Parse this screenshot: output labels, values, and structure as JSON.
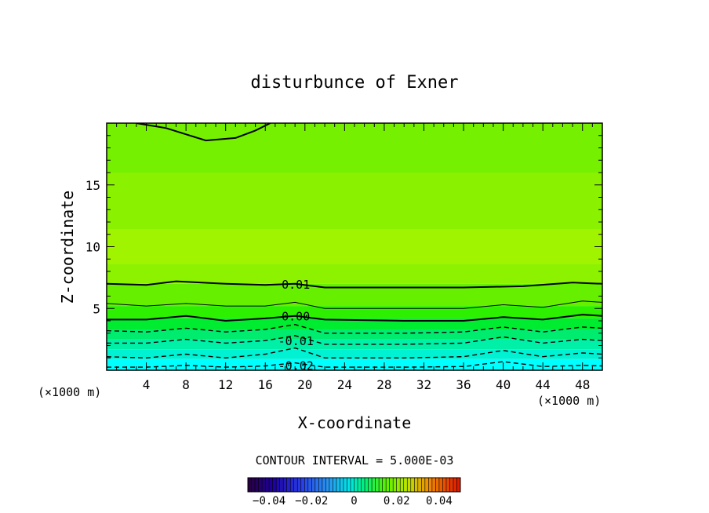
{
  "chart_data": {
    "type": "contour",
    "title": "disturbunce of Exner",
    "xlabel": "X-coordinate",
    "ylabel": "Z-coordinate",
    "x_unit": "(×1000 m)",
    "y_unit": "(×1000 m)",
    "xlim": [
      0,
      50
    ],
    "ylim": [
      0,
      20
    ],
    "x_ticks": [
      4,
      8,
      12,
      16,
      20,
      24,
      28,
      32,
      36,
      40,
      44,
      48
    ],
    "y_ticks": [
      5,
      10,
      15
    ],
    "contour_interval_text": "CONTOUR INTERVAL = 5.000E-03",
    "contour_levels": [
      -0.025,
      -0.02,
      -0.015,
      -0.01,
      -0.005,
      0.0,
      0.005,
      0.01,
      0.015
    ],
    "contour_labels": [
      {
        "text": "0.01",
        "x": 17.5,
        "y": 7.0
      },
      {
        "text": "0.00",
        "x": 17.5,
        "y": 4.4
      },
      {
        "text": "-0.01",
        "x": 17.5,
        "y": 2.4
      },
      {
        "text": "-0.02",
        "x": 17.5,
        "y": 0.4
      }
    ],
    "contour_lines": [
      {
        "level": 0.015,
        "style": "solid",
        "points": [
          [
            3,
            20
          ],
          [
            6,
            19.6
          ],
          [
            10,
            18.6
          ],
          [
            13,
            18.8
          ],
          [
            15,
            19.4
          ],
          [
            16.5,
            20
          ]
        ]
      },
      {
        "level": 0.01,
        "style": "solid",
        "points": [
          [
            0,
            7.0
          ],
          [
            4,
            6.9
          ],
          [
            7,
            7.2
          ],
          [
            12,
            7.0
          ],
          [
            16,
            6.9
          ],
          [
            19,
            7.0
          ],
          [
            22,
            6.7
          ],
          [
            28,
            6.7
          ],
          [
            36,
            6.7
          ],
          [
            42,
            6.8
          ],
          [
            47,
            7.1
          ],
          [
            50,
            7.0
          ]
        ]
      },
      {
        "level": 0.005,
        "style": "thin",
        "points": [
          [
            0,
            5.4
          ],
          [
            4,
            5.2
          ],
          [
            8,
            5.4
          ],
          [
            12,
            5.2
          ],
          [
            16,
            5.2
          ],
          [
            19,
            5.5
          ],
          [
            22,
            5.0
          ],
          [
            30,
            5.0
          ],
          [
            36,
            5.0
          ],
          [
            40,
            5.3
          ],
          [
            44,
            5.1
          ],
          [
            48,
            5.6
          ],
          [
            50,
            5.5
          ]
        ]
      },
      {
        "level": 0.0,
        "style": "solid",
        "points": [
          [
            0,
            4.1
          ],
          [
            4,
            4.1
          ],
          [
            8,
            4.4
          ],
          [
            12,
            4.0
          ],
          [
            16,
            4.2
          ],
          [
            19,
            4.4
          ],
          [
            22,
            4.1
          ],
          [
            30,
            4.0
          ],
          [
            36,
            4.0
          ],
          [
            40,
            4.3
          ],
          [
            44,
            4.1
          ],
          [
            48,
            4.5
          ],
          [
            50,
            4.4
          ]
        ]
      },
      {
        "level": -0.005,
        "style": "dashed",
        "points": [
          [
            0,
            3.2
          ],
          [
            4,
            3.1
          ],
          [
            8,
            3.4
          ],
          [
            12,
            3.1
          ],
          [
            16,
            3.3
          ],
          [
            19,
            3.7
          ],
          [
            22,
            3.0
          ],
          [
            30,
            3.0
          ],
          [
            36,
            3.1
          ],
          [
            40,
            3.5
          ],
          [
            44,
            3.1
          ],
          [
            48,
            3.5
          ],
          [
            50,
            3.4
          ]
        ]
      },
      {
        "level": -0.01,
        "style": "dashed",
        "points": [
          [
            0,
            2.2
          ],
          [
            4,
            2.2
          ],
          [
            8,
            2.5
          ],
          [
            12,
            2.2
          ],
          [
            16,
            2.4
          ],
          [
            19,
            2.8
          ],
          [
            22,
            2.1
          ],
          [
            30,
            2.1
          ],
          [
            36,
            2.2
          ],
          [
            40,
            2.7
          ],
          [
            44,
            2.2
          ],
          [
            48,
            2.5
          ],
          [
            50,
            2.4
          ]
        ]
      },
      {
        "level": -0.015,
        "style": "dashed",
        "points": [
          [
            0,
            1.1
          ],
          [
            4,
            1.0
          ],
          [
            8,
            1.3
          ],
          [
            12,
            1.0
          ],
          [
            16,
            1.3
          ],
          [
            19,
            1.8
          ],
          [
            22,
            1.0
          ],
          [
            30,
            1.0
          ],
          [
            36,
            1.1
          ],
          [
            40,
            1.6
          ],
          [
            44,
            1.1
          ],
          [
            48,
            1.4
          ],
          [
            50,
            1.3
          ]
        ]
      },
      {
        "level": -0.02,
        "style": "dashed",
        "points": [
          [
            0,
            0.25
          ],
          [
            4,
            0.25
          ],
          [
            8,
            0.4
          ],
          [
            12,
            0.25
          ],
          [
            16,
            0.35
          ],
          [
            19,
            0.6
          ],
          [
            22,
            0.25
          ],
          [
            30,
            0.25
          ],
          [
            36,
            0.3
          ],
          [
            40,
            0.7
          ],
          [
            44,
            0.3
          ],
          [
            48,
            0.4
          ],
          [
            50,
            0.35
          ]
        ]
      }
    ],
    "colorbar": {
      "tick_labels": [
        "−0.04",
        "−0.02",
        "0",
        "0.02",
        "0.04"
      ],
      "tick_values": [
        -0.04,
        -0.02,
        0,
        0.02,
        0.04
      ],
      "range": [
        -0.05,
        0.05
      ]
    },
    "fill_bands": [
      {
        "y": [
          0.0,
          0.9
        ],
        "color": "#00ffff"
      },
      {
        "y": [
          0.9,
          1.7
        ],
        "color": "#00f2d2"
      },
      {
        "y": [
          1.7,
          2.5
        ],
        "color": "#00f0a8"
      },
      {
        "y": [
          2.5,
          3.3
        ],
        "color": "#00ec6e"
      },
      {
        "y": [
          3.3,
          4.2
        ],
        "color": "#00ec30"
      },
      {
        "y": [
          4.2,
          5.2
        ],
        "color": "#2cf000"
      },
      {
        "y": [
          5.2,
          7.0
        ],
        "color": "#66f000"
      },
      {
        "y": [
          7.0,
          8.6
        ],
        "color": "#8cf200"
      },
      {
        "y": [
          8.6,
          11.4
        ],
        "color": "#a0f400"
      },
      {
        "y": [
          11.4,
          16.0
        ],
        "color": "#8af200"
      },
      {
        "y": [
          16.0,
          20.0
        ],
        "color": "#74f000"
      }
    ]
  }
}
